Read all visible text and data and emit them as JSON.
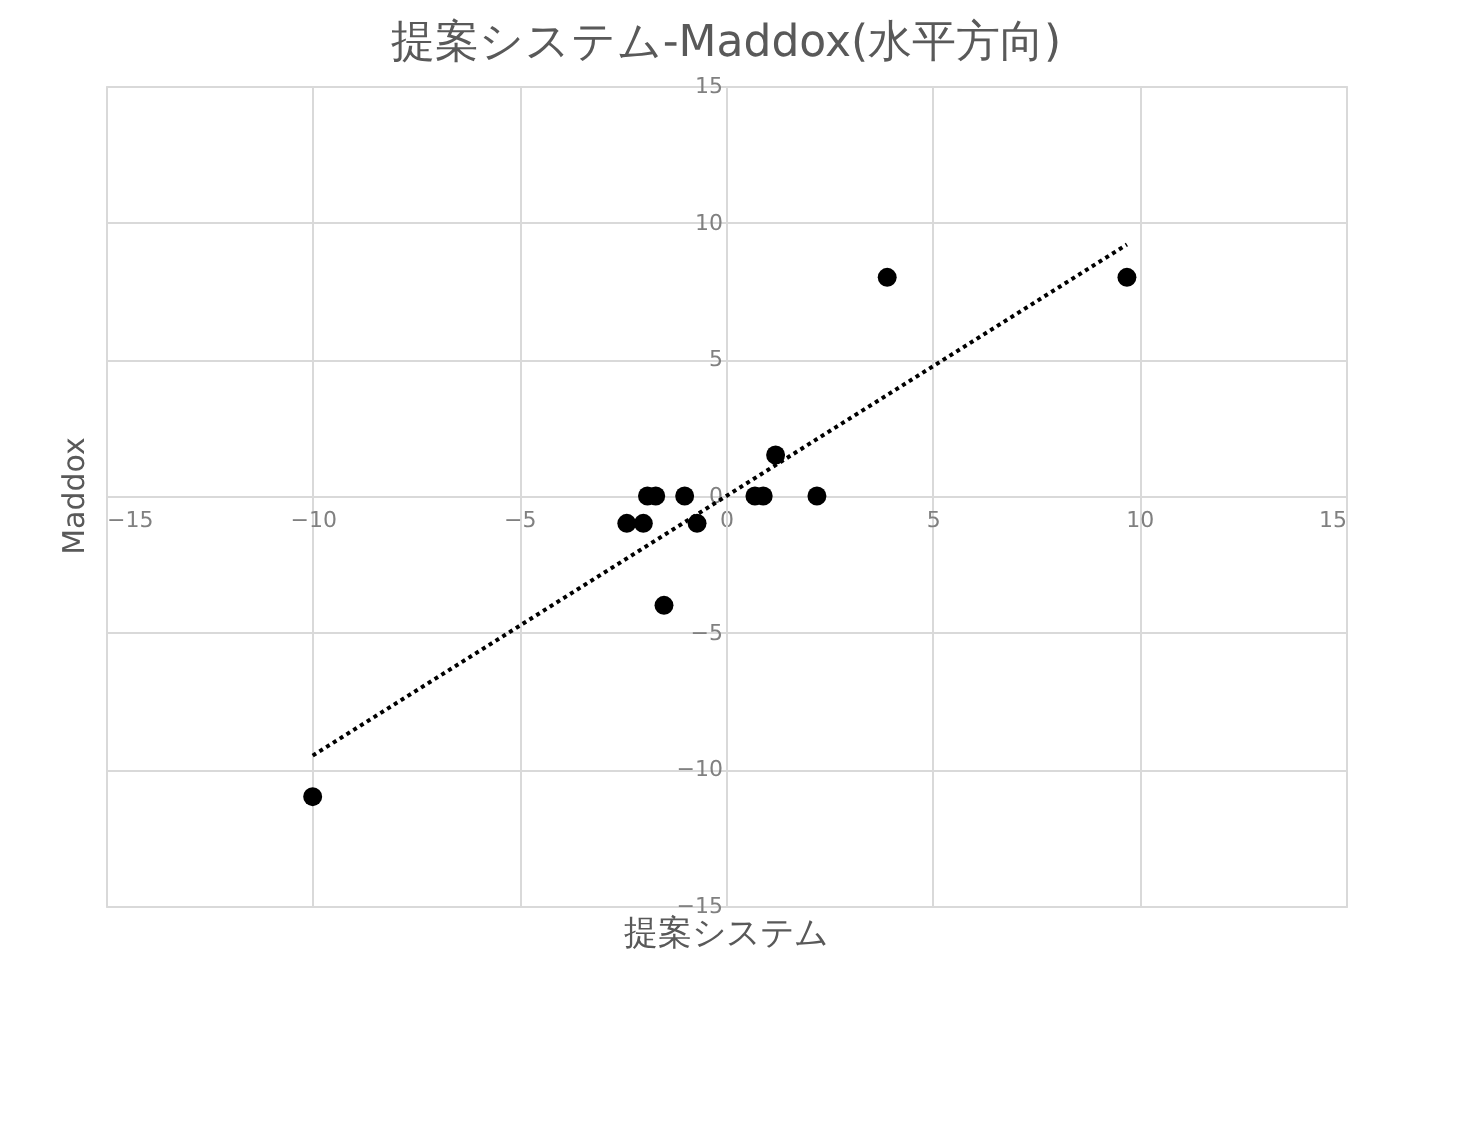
{
  "chart_data": {
    "type": "scatter",
    "title": "提案システム-Maddox(水平方向)",
    "xlabel": "提案システム",
    "ylabel": "Maddox",
    "xlim": [
      -15,
      15
    ],
    "ylim": [
      -15,
      15
    ],
    "xticks": [
      -15,
      -10,
      -5,
      0,
      5,
      10,
      15
    ],
    "yticks": [
      -15,
      -10,
      -5,
      0,
      5,
      10,
      15
    ],
    "grid": true,
    "legend": false,
    "marker": "circle",
    "series": [
      {
        "color": "#000000",
        "x": [
          3.9,
          9.7,
          -10,
          1.2,
          -1.9,
          -1.7,
          -1.0,
          0.7,
          0.9,
          2.2,
          -2.4,
          -2.0,
          -0.7,
          -1.5
        ],
        "values": [
          8,
          8,
          -11,
          1.5,
          0,
          0,
          0,
          0,
          0,
          0,
          -1,
          -1,
          -1,
          -4
        ]
      },
      {
        "type": "line",
        "color": "#000000",
        "line_style": "dotted",
        "marker": "none",
        "x": [
          -10,
          9.7
        ],
        "values": [
          -9.5,
          9.2
        ]
      }
    ]
  }
}
